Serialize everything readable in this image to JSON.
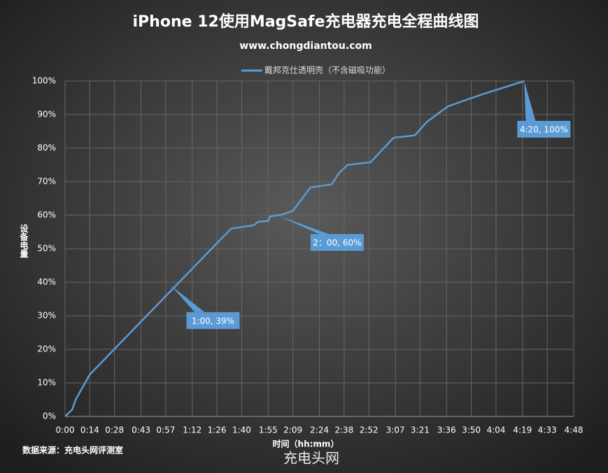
{
  "chart_data": {
    "type": "line",
    "title": "iPhone 12使用MagSafe充电器充电全程曲线图",
    "subtitle": "www.chongdiantou.com",
    "x_label": "时间（hh:mm）",
    "y_label": "设备电量",
    "source": "数据来源：充电头网评测室",
    "watermark": "充电头网",
    "xlim": [
      0,
      288
    ],
    "ylim": [
      0,
      100
    ],
    "grid": true,
    "legend": "top",
    "xticks": [
      {
        "value": 0,
        "label": "0:00"
      },
      {
        "value": 14,
        "label": "0:14"
      },
      {
        "value": 28,
        "label": "0:28"
      },
      {
        "value": 43,
        "label": "0:43"
      },
      {
        "value": 57,
        "label": "0:57"
      },
      {
        "value": 72,
        "label": "1:12"
      },
      {
        "value": 86,
        "label": "1:26"
      },
      {
        "value": 100,
        "label": "1:40"
      },
      {
        "value": 115,
        "label": "1:55"
      },
      {
        "value": 129,
        "label": "2:09"
      },
      {
        "value": 144,
        "label": "2:24"
      },
      {
        "value": 158,
        "label": "2:38"
      },
      {
        "value": 172,
        "label": "2:52"
      },
      {
        "value": 187,
        "label": "3:07"
      },
      {
        "value": 201,
        "label": "3:21"
      },
      {
        "value": 216,
        "label": "3:36"
      },
      {
        "value": 230,
        "label": "3:50"
      },
      {
        "value": 244,
        "label": "4:04"
      },
      {
        "value": 259,
        "label": "4:19"
      },
      {
        "value": 273,
        "label": "4:33"
      },
      {
        "value": 288,
        "label": "4:48"
      }
    ],
    "yticks": [
      {
        "value": 0,
        "label": "0%"
      },
      {
        "value": 10,
        "label": "10%"
      },
      {
        "value": 20,
        "label": "20%"
      },
      {
        "value": 30,
        "label": "30%"
      },
      {
        "value": 40,
        "label": "40%"
      },
      {
        "value": 50,
        "label": "50%"
      },
      {
        "value": 60,
        "label": "60%"
      },
      {
        "value": 70,
        "label": "70%"
      },
      {
        "value": 80,
        "label": "80%"
      },
      {
        "value": 90,
        "label": "90%"
      },
      {
        "value": 100,
        "label": "100%"
      }
    ],
    "x": [
      0,
      4,
      6,
      14,
      94,
      107,
      109,
      115,
      116,
      123,
      129,
      139,
      151,
      155,
      160,
      173,
      186,
      198,
      205,
      217,
      236,
      260
    ],
    "series": [
      {
        "name": "戴邦克仕透明壳（不含磁吸功能）",
        "color": "#5b9bd5",
        "values": [
          0,
          2,
          5,
          12.5,
          56,
          57,
          58,
          58.3,
          59.6,
          60.2,
          61.3,
          68.3,
          69.2,
          72.5,
          75,
          75.8,
          83.1,
          83.8,
          87.9,
          92.5,
          96,
          100
        ]
      }
    ],
    "annotations": [
      {
        "text": "1:00, 39%",
        "x": 60,
        "y": 39
      },
      {
        "text": "2：00, 60%",
        "x": 120,
        "y": 60
      },
      {
        "text": "4:20, 100%",
        "x": 260,
        "y": 100
      }
    ]
  }
}
